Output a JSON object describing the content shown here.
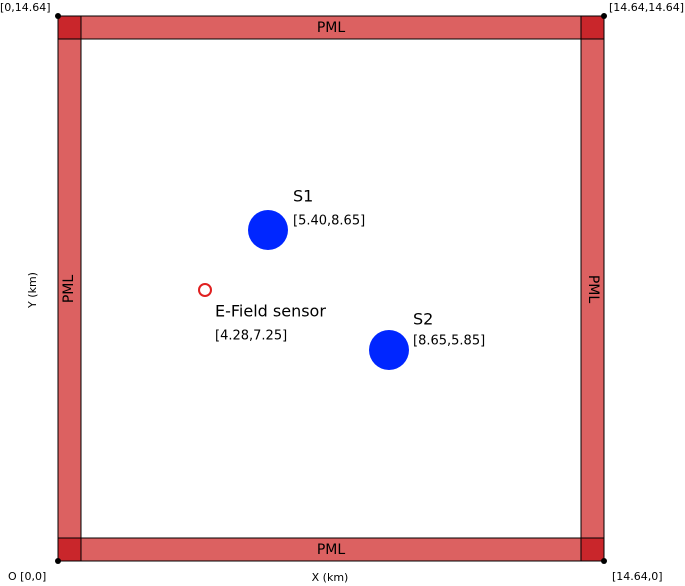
{
  "corners": {
    "top_left": "[0,14.64]",
    "top_right": "[14.64,14.64]",
    "bottom_left": "O [0,0]",
    "bottom_right": "[14.64,0]"
  },
  "axes": {
    "x": "X (km)",
    "y": "Y (km)"
  },
  "pml": {
    "top": "PML",
    "bottom": "PML",
    "left": "PML",
    "right": "PML"
  },
  "sources": [
    {
      "label": "S1",
      "coords": "[5.40,8.65]"
    },
    {
      "label": "S2",
      "coords": "[8.65,5.85]"
    }
  ],
  "sensor": {
    "label": "E-Field sensor",
    "coords": "[4.28,7.25]"
  }
}
